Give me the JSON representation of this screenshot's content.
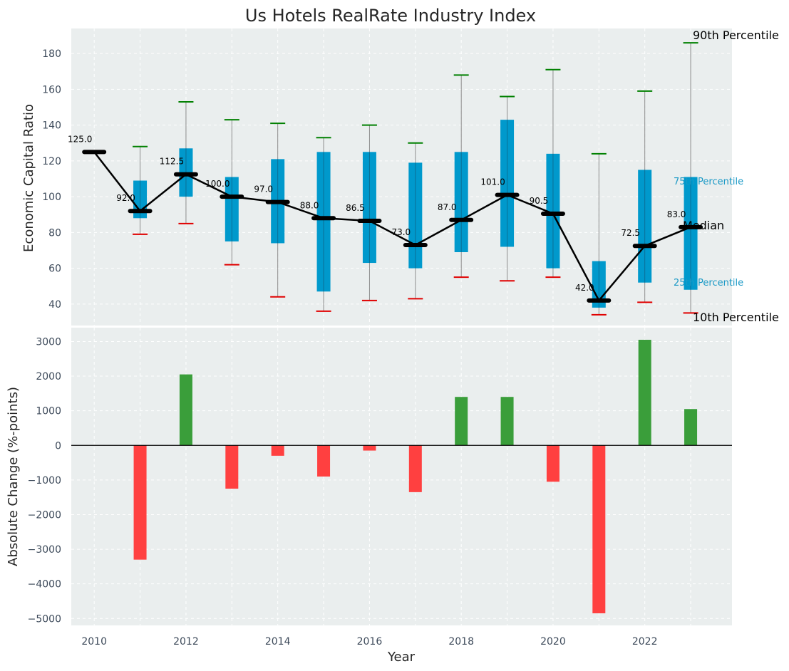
{
  "chart_data": [
    {
      "type": "box",
      "title": "Us Hotels RealRate Industry Index",
      "xlabel": "",
      "ylabel": "Economic Capital Ratio",
      "ylim": [
        28,
        194
      ],
      "yticks": [
        40,
        60,
        80,
        100,
        120,
        140,
        160,
        180
      ],
      "years": [
        2010,
        2011,
        2012,
        2013,
        2014,
        2015,
        2016,
        2017,
        2018,
        2019,
        2020,
        2021,
        2022,
        2023
      ],
      "median": [
        125.0,
        92.0,
        112.5,
        100.0,
        97.0,
        88.0,
        86.5,
        73.0,
        87.0,
        101.0,
        90.5,
        42.0,
        72.5,
        83.0
      ],
      "median_labels": [
        "125.0",
        "92.0",
        "112.5",
        "100.0",
        "97.0",
        "88.0",
        "86.5",
        "73.0",
        "87.0",
        "101.0",
        "90.5",
        "42.0",
        "72.5",
        "83.0"
      ],
      "p25": [
        125,
        88,
        100,
        75,
        74,
        47,
        63,
        60,
        69,
        72,
        60,
        38,
        52,
        48
      ],
      "p75": [
        125,
        109,
        127,
        111,
        121,
        125,
        125,
        119,
        125,
        143,
        124,
        64,
        115,
        111
      ],
      "p10": [
        125,
        79,
        85,
        62,
        44,
        36,
        42,
        43,
        55,
        53,
        55,
        34,
        41,
        35
      ],
      "p90": [
        125,
        128,
        153,
        143,
        141,
        133,
        140,
        130,
        168,
        156,
        171,
        124,
        159,
        186
      ],
      "legend": {
        "p90": "90th Percentile",
        "p75": "75th Percentile",
        "median": "Median",
        "p25": "25th Percentile",
        "p10": "10th Percentile"
      },
      "colors": {
        "box": "#0099cc",
        "median": "#000000",
        "p90_cap": "#008000",
        "p10_cap": "#e00000",
        "whisker": "#8c8c8c",
        "background": "#eaeeee"
      }
    },
    {
      "type": "bar",
      "title": "",
      "xlabel": "Year",
      "ylabel": "Absolute Change (%-points)",
      "ylim": [
        -5200,
        3400
      ],
      "yticks": [
        -5000,
        -4000,
        -3000,
        -2000,
        -1000,
        0,
        1000,
        2000,
        3000
      ],
      "ytick_labels": [
        "−5000",
        "−4000",
        "−3000",
        "−2000",
        "−1000",
        "0",
        "1000",
        "2000",
        "3000"
      ],
      "x": [
        2011,
        2012,
        2013,
        2014,
        2015,
        2016,
        2017,
        2018,
        2019,
        2020,
        2021,
        2022,
        2023
      ],
      "values": [
        -3300,
        2050,
        -1250,
        -300,
        -900,
        -150,
        -1350,
        1400,
        1400,
        -1050,
        -4850,
        3050,
        1050
      ],
      "xticks": [
        2010,
        2012,
        2014,
        2016,
        2018,
        2020,
        2022
      ],
      "colors": {
        "positive": "#3a9e3a",
        "negative": "#ff4040",
        "zero_line": "#000000",
        "background": "#eaeeee"
      }
    }
  ]
}
